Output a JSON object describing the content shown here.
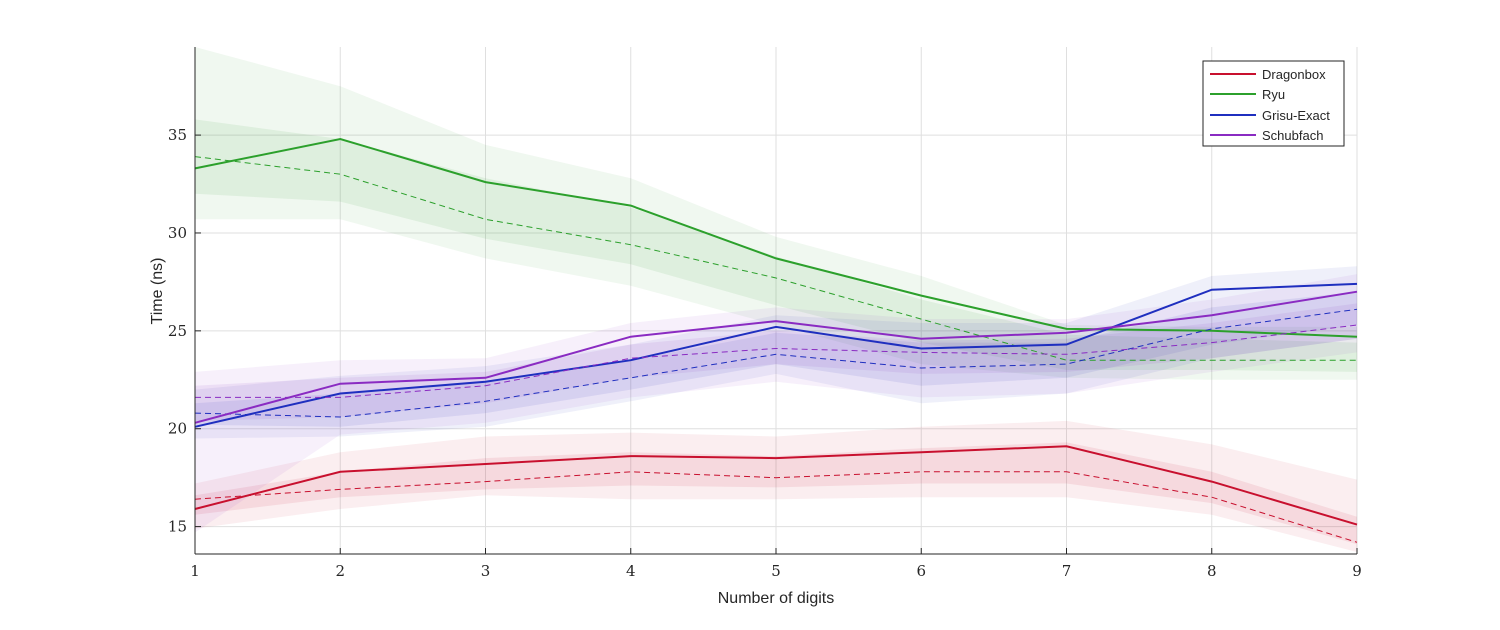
{
  "chart_data": {
    "type": "line",
    "title": "",
    "xlabel": "Number of digits",
    "ylabel": "Time (ns)",
    "x": [
      1,
      2,
      3,
      4,
      5,
      6,
      7,
      8,
      9
    ],
    "xlim": [
      1,
      9
    ],
    "ylim": [
      13.6,
      39.5
    ],
    "xticks": [
      "1",
      "2",
      "3",
      "4",
      "5",
      "6",
      "7",
      "8",
      "9"
    ],
    "yticks": [
      15,
      20,
      25,
      30,
      35
    ],
    "ytick_labels": [
      "15",
      "20",
      "25",
      "30",
      "35"
    ],
    "grid": true,
    "legend_position": "top-right",
    "series": [
      {
        "name": "Dragonbox",
        "color": "#c8102e",
        "mean": [
          15.9,
          17.8,
          18.2,
          18.6,
          18.5,
          18.8,
          19.1,
          17.3,
          15.1
        ],
        "median": [
          16.4,
          16.9,
          17.3,
          17.8,
          17.5,
          17.8,
          17.8,
          16.5,
          14.2
        ],
        "band_outer_upper": [
          17.2,
          18.8,
          19.6,
          19.8,
          19.6,
          20.1,
          20.4,
          19.2,
          17.4
        ],
        "band_outer_lower": [
          14.9,
          15.9,
          16.6,
          16.4,
          16.4,
          16.5,
          16.5,
          15.6,
          13.7
        ],
        "band_inner_upper": [
          16.6,
          17.8,
          18.5,
          18.8,
          18.6,
          19.0,
          19.3,
          17.8,
          15.5
        ],
        "band_inner_lower": [
          15.6,
          16.5,
          16.9,
          17.1,
          17.0,
          17.2,
          17.2,
          16.2,
          14.1
        ]
      },
      {
        "name": "Ryu",
        "color": "#2ca02c",
        "mean": [
          33.3,
          34.8,
          32.6,
          31.4,
          28.7,
          26.8,
          25.1,
          25.0,
          24.7
        ],
        "median": [
          33.9,
          33.0,
          30.7,
          29.4,
          27.7,
          25.6,
          23.5,
          23.5,
          23.5
        ],
        "band_outer_upper": [
          39.5,
          37.5,
          34.5,
          32.8,
          29.8,
          27.8,
          25.3,
          25.2,
          25.2
        ],
        "band_outer_lower": [
          30.7,
          30.7,
          28.7,
          27.3,
          25.3,
          23.3,
          22.6,
          22.5,
          22.5
        ],
        "band_inner_upper": [
          35.8,
          34.8,
          32.8,
          31.3,
          28.8,
          26.6,
          24.8,
          24.6,
          24.4
        ],
        "band_inner_lower": [
          32.0,
          31.6,
          29.7,
          28.4,
          26.3,
          24.4,
          23.0,
          23.0,
          22.9
        ]
      },
      {
        "name": "Grisu-Exact",
        "color": "#1f2fbf",
        "mean": [
          20.1,
          21.8,
          22.4,
          23.5,
          25.2,
          24.1,
          24.3,
          27.1,
          27.4
        ],
        "median": [
          20.8,
          20.6,
          21.4,
          22.6,
          23.8,
          23.1,
          23.3,
          25.1,
          26.1
        ],
        "band_outer_upper": [
          22.0,
          22.7,
          23.2,
          24.3,
          25.8,
          25.4,
          25.4,
          27.8,
          28.3
        ],
        "band_outer_lower": [
          19.5,
          19.6,
          20.1,
          21.4,
          22.8,
          21.3,
          21.8,
          23.6,
          24.6
        ],
        "band_inner_upper": [
          21.3,
          21.8,
          22.4,
          23.5,
          24.9,
          24.4,
          24.4,
          26.2,
          27.0
        ],
        "band_inner_lower": [
          20.2,
          20.1,
          20.8,
          22.0,
          23.3,
          22.2,
          22.6,
          24.3,
          25.3
        ]
      },
      {
        "name": "Schubfach",
        "color": "#8a2bc2",
        "mean": [
          20.3,
          22.3,
          22.6,
          24.7,
          25.5,
          24.6,
          24.9,
          25.8,
          27.0
        ],
        "median": [
          21.6,
          21.6,
          22.2,
          23.6,
          24.1,
          23.9,
          23.8,
          24.4,
          25.3
        ],
        "band_outer_upper": [
          22.9,
          23.5,
          23.6,
          25.4,
          26.2,
          25.6,
          25.6,
          26.6,
          27.9
        ],
        "band_outer_lower": [
          14.7,
          19.7,
          20.3,
          21.6,
          22.4,
          21.6,
          21.8,
          22.9,
          23.9
        ],
        "band_inner_upper": [
          22.2,
          22.6,
          22.9,
          24.3,
          25.0,
          24.5,
          24.6,
          25.4,
          26.4
        ],
        "band_inner_lower": [
          20.4,
          20.6,
          21.3,
          22.6,
          23.3,
          22.8,
          22.9,
          23.6,
          24.6
        ]
      }
    ]
  }
}
